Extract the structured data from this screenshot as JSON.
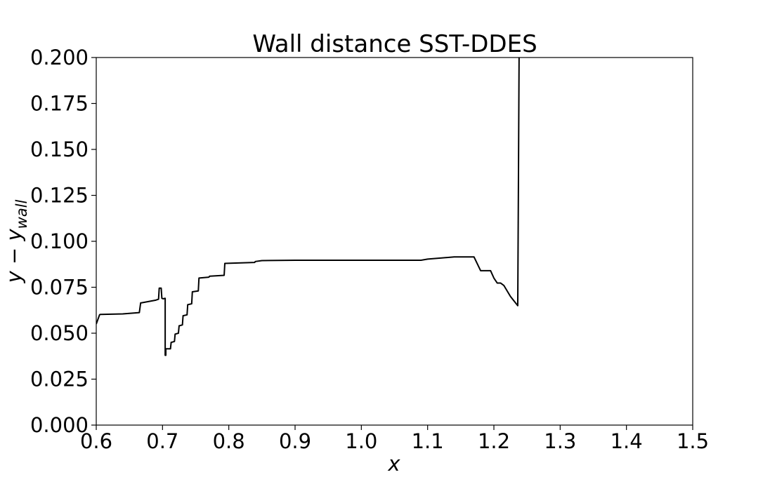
{
  "chart_data": {
    "type": "line",
    "title": "Wall distance SST-DDES",
    "xlabel": "x",
    "ylabel": {
      "main": "y − y",
      "subscript": "wall"
    },
    "xlim": [
      0.6,
      1.5
    ],
    "ylim": [
      0.0,
      0.2
    ],
    "xticks": [
      0.6,
      0.7,
      0.8,
      0.9,
      1.0,
      1.1,
      1.2,
      1.3,
      1.4,
      1.5
    ],
    "xtick_labels": [
      "0.6",
      "0.7",
      "0.8",
      "0.9",
      "1.0",
      "1.1",
      "1.2",
      "1.3",
      "1.4",
      "1.5"
    ],
    "yticks": [
      0.0,
      0.025,
      0.05,
      0.075,
      0.1,
      0.125,
      0.15,
      0.175,
      0.2
    ],
    "ytick_labels": [
      "0.000",
      "0.025",
      "0.050",
      "0.075",
      "0.100",
      "0.125",
      "0.150",
      "0.175",
      "0.200"
    ],
    "grid": false,
    "series": [
      {
        "color": "#000000",
        "x": [
          0.6,
          0.605,
          0.606,
          0.64,
          0.665,
          0.667,
          0.668,
          0.69,
          0.694,
          0.695,
          0.698,
          0.699,
          0.701,
          0.704,
          0.704,
          0.705,
          0.705,
          0.712,
          0.713,
          0.718,
          0.719,
          0.724,
          0.725,
          0.73,
          0.731,
          0.737,
          0.738,
          0.744,
          0.745,
          0.754,
          0.755,
          0.77,
          0.771,
          0.793,
          0.794,
          0.839,
          0.84,
          0.85,
          0.9,
          0.95,
          1.0,
          1.05,
          1.09,
          1.1,
          1.14,
          1.17,
          1.18,
          1.195,
          1.2,
          1.205,
          1.21,
          1.215,
          1.225,
          1.236,
          1.237,
          1.238
        ],
        "y": [
          0.055,
          0.06,
          0.0602,
          0.0605,
          0.0612,
          0.0665,
          0.0665,
          0.068,
          0.0685,
          0.0745,
          0.0745,
          0.069,
          0.0687,
          0.069,
          0.038,
          0.038,
          0.0415,
          0.0415,
          0.045,
          0.0455,
          0.0495,
          0.05,
          0.054,
          0.0545,
          0.0595,
          0.06,
          0.0655,
          0.066,
          0.0725,
          0.073,
          0.08,
          0.0805,
          0.081,
          0.0815,
          0.088,
          0.0885,
          0.089,
          0.0895,
          0.0897,
          0.0897,
          0.0897,
          0.0897,
          0.0897,
          0.0903,
          0.0915,
          0.0915,
          0.084,
          0.084,
          0.08,
          0.0773,
          0.0773,
          0.076,
          0.07,
          0.065,
          0.13,
          0.2
        ]
      }
    ]
  }
}
